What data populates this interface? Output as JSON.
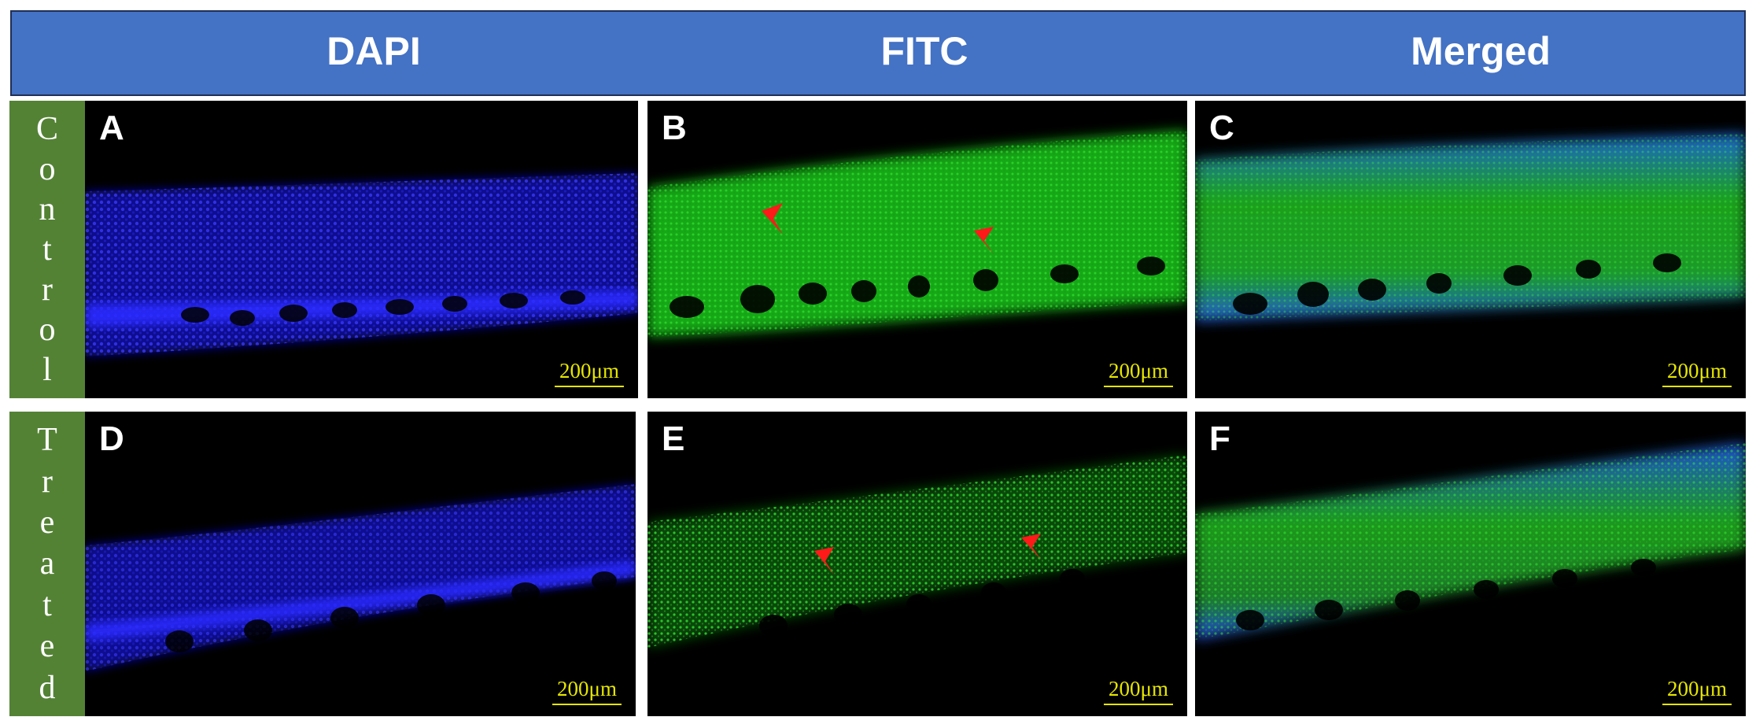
{
  "columns": [
    "DAPI",
    "FITC",
    "Merged"
  ],
  "rows": [
    {
      "label_letters": [
        "C",
        "o",
        "n",
        "t",
        "r",
        "o",
        "l"
      ]
    },
    {
      "label_letters": [
        "T",
        "r",
        "e",
        "a",
        "t",
        "e",
        "d"
      ]
    }
  ],
  "panels": [
    {
      "letter": "A",
      "scale": "200μm",
      "channel": "dapi",
      "condition": "control"
    },
    {
      "letter": "B",
      "scale": "200μm",
      "channel": "fitc",
      "condition": "control"
    },
    {
      "letter": "C",
      "scale": "200μm",
      "channel": "merged",
      "condition": "control"
    },
    {
      "letter": "D",
      "scale": "200μm",
      "channel": "dapi",
      "condition": "treated"
    },
    {
      "letter": "E",
      "scale": "200μm",
      "channel": "fitc",
      "condition": "treated"
    },
    {
      "letter": "F",
      "scale": "200μm",
      "channel": "merged",
      "condition": "treated"
    }
  ],
  "colors": {
    "header_bg": "#4472c4",
    "row_label_bg": "#548235",
    "dapi": "#1a1aff",
    "fitc": "#19c419",
    "arrow": "#ff1a1a",
    "scale": "#e6e600"
  }
}
